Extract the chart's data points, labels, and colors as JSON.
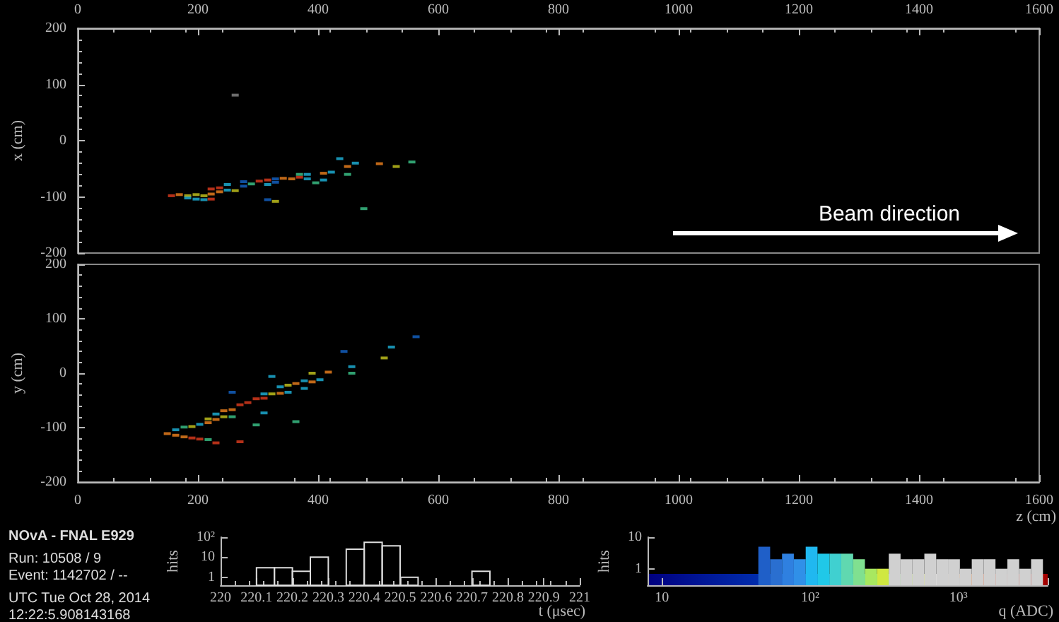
{
  "chart_data": [
    {
      "type": "scatter",
      "ylabel": "x (cm)",
      "xlim": [
        0,
        1600
      ],
      "xticks": [
        0,
        200,
        400,
        600,
        800,
        1000,
        1200,
        1400,
        1600
      ],
      "ylim": [
        -200,
        200
      ],
      "yticks": [
        -200,
        -100,
        0,
        100,
        200
      ],
      "marker": "square",
      "annotations": [
        "Beam direction"
      ],
      "series": [
        {
          "x": [
            156,
            169,
            183,
            183,
            197,
            197,
            210,
            210,
            222,
            222,
            222,
            236,
            236,
            249,
            249,
            262,
            276,
            276,
            289,
            302,
            316,
            316,
            316,
            329,
            329,
            329,
            342,
            356,
            369,
            369,
            382,
            382,
            396,
            409,
            409,
            422,
            436,
            449,
            449,
            462,
            476,
            502,
            530,
            556,
            262
          ],
          "values": [
            -98,
            -96,
            -98,
            -102,
            -96,
            -104,
            -98,
            -105,
            -86,
            -95,
            -104,
            -84,
            -91,
            -78,
            -88,
            -89,
            -73,
            -81,
            -77,
            -72,
            -70,
            -78,
            -105,
            -68,
            -74,
            -108,
            -67,
            -68,
            -65,
            -60,
            -60,
            -68,
            -75,
            -70,
            -58,
            -56,
            -32,
            -46,
            -60,
            -40,
            -121,
            -41,
            -46,
            -38,
            81
          ],
          "colors": [
            "#e03c1e",
            "#f0821e",
            "#c8c81e",
            "#1eb4dc",
            "#c8c81e",
            "#1eb4dc",
            "#c8c81e",
            "#1eb4dc",
            "#e03c1e",
            "#f0821e",
            "#e03c1e",
            "#e03c1e",
            "#f0821e",
            "#1eb4dc",
            "#1eb4dc",
            "#c8c81e",
            "#1464c8",
            "#1464c8",
            "#3cc88c",
            "#e03c1e",
            "#e03c1e",
            "#1eb4dc",
            "#1464c8",
            "#1464c8",
            "#1464c8",
            "#c8c81e",
            "#f0821e",
            "#f0821e",
            "#e03c1e",
            "#3cc88c",
            "#1eb4dc",
            "#1eb4dc",
            "#3cc88c",
            "#1eb4dc",
            "#f0821e",
            "#1eb4dc",
            "#1eb4dc",
            "#f0821e",
            "#3cc88c",
            "#1eb4dc",
            "#3cc88c",
            "#f0821e",
            "#c8c81e",
            "#3cc88c",
            "#888888"
          ]
        }
      ]
    },
    {
      "type": "scatter",
      "xlabel": "z (cm)",
      "ylabel": "y (cm)",
      "xlim": [
        0,
        1600
      ],
      "xticks": [
        0,
        200,
        400,
        600,
        800,
        1000,
        1200,
        1400,
        1600
      ],
      "ylim": [
        -200,
        200
      ],
      "yticks": [
        -200,
        -100,
        0,
        100,
        200
      ],
      "marker": "square",
      "series": [
        {
          "x": [
            149,
            163,
            163,
            177,
            177,
            190,
            190,
            203,
            203,
            217,
            217,
            217,
            230,
            230,
            230,
            243,
            243,
            257,
            257,
            257,
            270,
            270,
            283,
            297,
            297,
            310,
            310,
            310,
            323,
            323,
            337,
            337,
            350,
            350,
            363,
            363,
            377,
            377,
            390,
            390,
            403,
            417,
            443,
            456,
            456,
            510,
            522,
            563
          ],
          "values": [
            -111,
            -104,
            -114,
            -99,
            -117,
            -98,
            -119,
            -94,
            -121,
            -84,
            -91,
            -122,
            -75,
            -85,
            -128,
            -69,
            -80,
            -67,
            -80,
            -35,
            -58,
            -126,
            -54,
            -47,
            -95,
            -38,
            -46,
            -73,
            -6,
            -38,
            -25,
            -37,
            -22,
            -35,
            -19,
            -89,
            -14,
            -28,
            0,
            -16,
            -12,
            2,
            40,
            12,
            0,
            28,
            48,
            67
          ],
          "colors": [
            "#f0821e",
            "#1eb4dc",
            "#f0821e",
            "#3cc88c",
            "#f0821e",
            "#c8c81e",
            "#e03c1e",
            "#1eb4dc",
            "#e03c1e",
            "#c8c81e",
            "#f0821e",
            "#3cc88c",
            "#1eb4dc",
            "#f0821e",
            "#e03c1e",
            "#f0821e",
            "#c8c81e",
            "#f0821e",
            "#3cc88c",
            "#1464c8",
            "#e03c1e",
            "#e03c1e",
            "#e03c1e",
            "#e03c1e",
            "#3cc88c",
            "#1eb4dc",
            "#e03c1e",
            "#1eb4dc",
            "#1eb4dc",
            "#c8c81e",
            "#1eb4dc",
            "#f0821e",
            "#c8c81e",
            "#1eb4dc",
            "#f0821e",
            "#3cc88c",
            "#1eb4dc",
            "#1eb4dc",
            "#c8c81e",
            "#f0821e",
            "#1eb4dc",
            "#f0821e",
            "#1464c8",
            "#1eb4dc",
            "#3cc88c",
            "#c8c81e",
            "#1eb4dc",
            "#1464c8"
          ]
        }
      ]
    },
    {
      "type": "other",
      "annotations": [
        "NOvA - FNAL E929",
        "Run:  10508 / 9",
        "Event: 1142702 / --",
        "UTC Tue Oct 28, 2014",
        "12:22:5.908143168"
      ]
    },
    {
      "type": "histogram",
      "xlabel": "t (μsec)",
      "ylabel": "hits",
      "log": "y",
      "color": "#dddddd",
      "xlim": [
        220,
        221
      ],
      "xticks": [
        220,
        220.1,
        220.2,
        220.3,
        220.4,
        220.5,
        220.6,
        220.7,
        220.8,
        220.9,
        221
      ],
      "ylim": [
        0.4,
        100
      ],
      "yticks": [
        1,
        10,
        {
          "value": 100,
          "label": "10²"
        }
      ],
      "bins": [
        220,
        220.05,
        220.1,
        220.15,
        220.2,
        220.25,
        220.3,
        220.35,
        220.4,
        220.45,
        220.5,
        220.55,
        220.6,
        220.65,
        220.7,
        220.75,
        220.8,
        220.85,
        220.9,
        220.95,
        221
      ],
      "values": [
        null,
        null,
        3,
        3,
        2,
        10,
        null,
        25,
        55,
        37,
        1,
        null,
        null,
        null,
        2,
        null,
        null,
        null,
        null,
        null
      ]
    },
    {
      "type": "histogram",
      "xlabel": "q (ADC)",
      "ylabel": "hits",
      "log": "xy",
      "xlim": [
        8,
        4000
      ],
      "xticks": [
        10,
        {
          "value": 100,
          "label": "10²"
        },
        {
          "value": 1000,
          "label": "10³"
        }
      ],
      "ylim": [
        0.3,
        10
      ],
      "yticks": [
        1,
        10
      ],
      "bins": [
        44.7,
        53.7,
        64.6,
        77.6,
        93.3,
        112,
        135,
        162,
        195,
        234,
        282,
        339,
        407,
        490,
        589,
        708,
        851,
        1023,
        1230,
        1479,
        1778,
        2138,
        2570,
        3090,
        3715
      ],
      "values": [
        5,
        2,
        3,
        2,
        5,
        3,
        3,
        3,
        2,
        1,
        1,
        3,
        2,
        2,
        3,
        2,
        2,
        1,
        2,
        2,
        1,
        2,
        1,
        2
      ],
      "colors": [
        "#1f5fc8",
        "#2a6fd0",
        "#2f80e0",
        "#3090e8",
        "#20b8f0",
        "#20c8e8",
        "#40d0d0",
        "#60d8b0",
        "#80e090",
        "#a8e860",
        "#d0e840",
        "#d0d0d0",
        "#d0d0d0",
        "#d0d0d0",
        "#d0d0d0",
        "#d0d0d0",
        "#d0d0d0",
        "#d0d0d0",
        "#d0d0d0",
        "#d0d0d0",
        "#d0d0d0",
        "#d0d0d0",
        "#d0d0d0",
        "#d0d0d0"
      ]
    }
  ]
}
